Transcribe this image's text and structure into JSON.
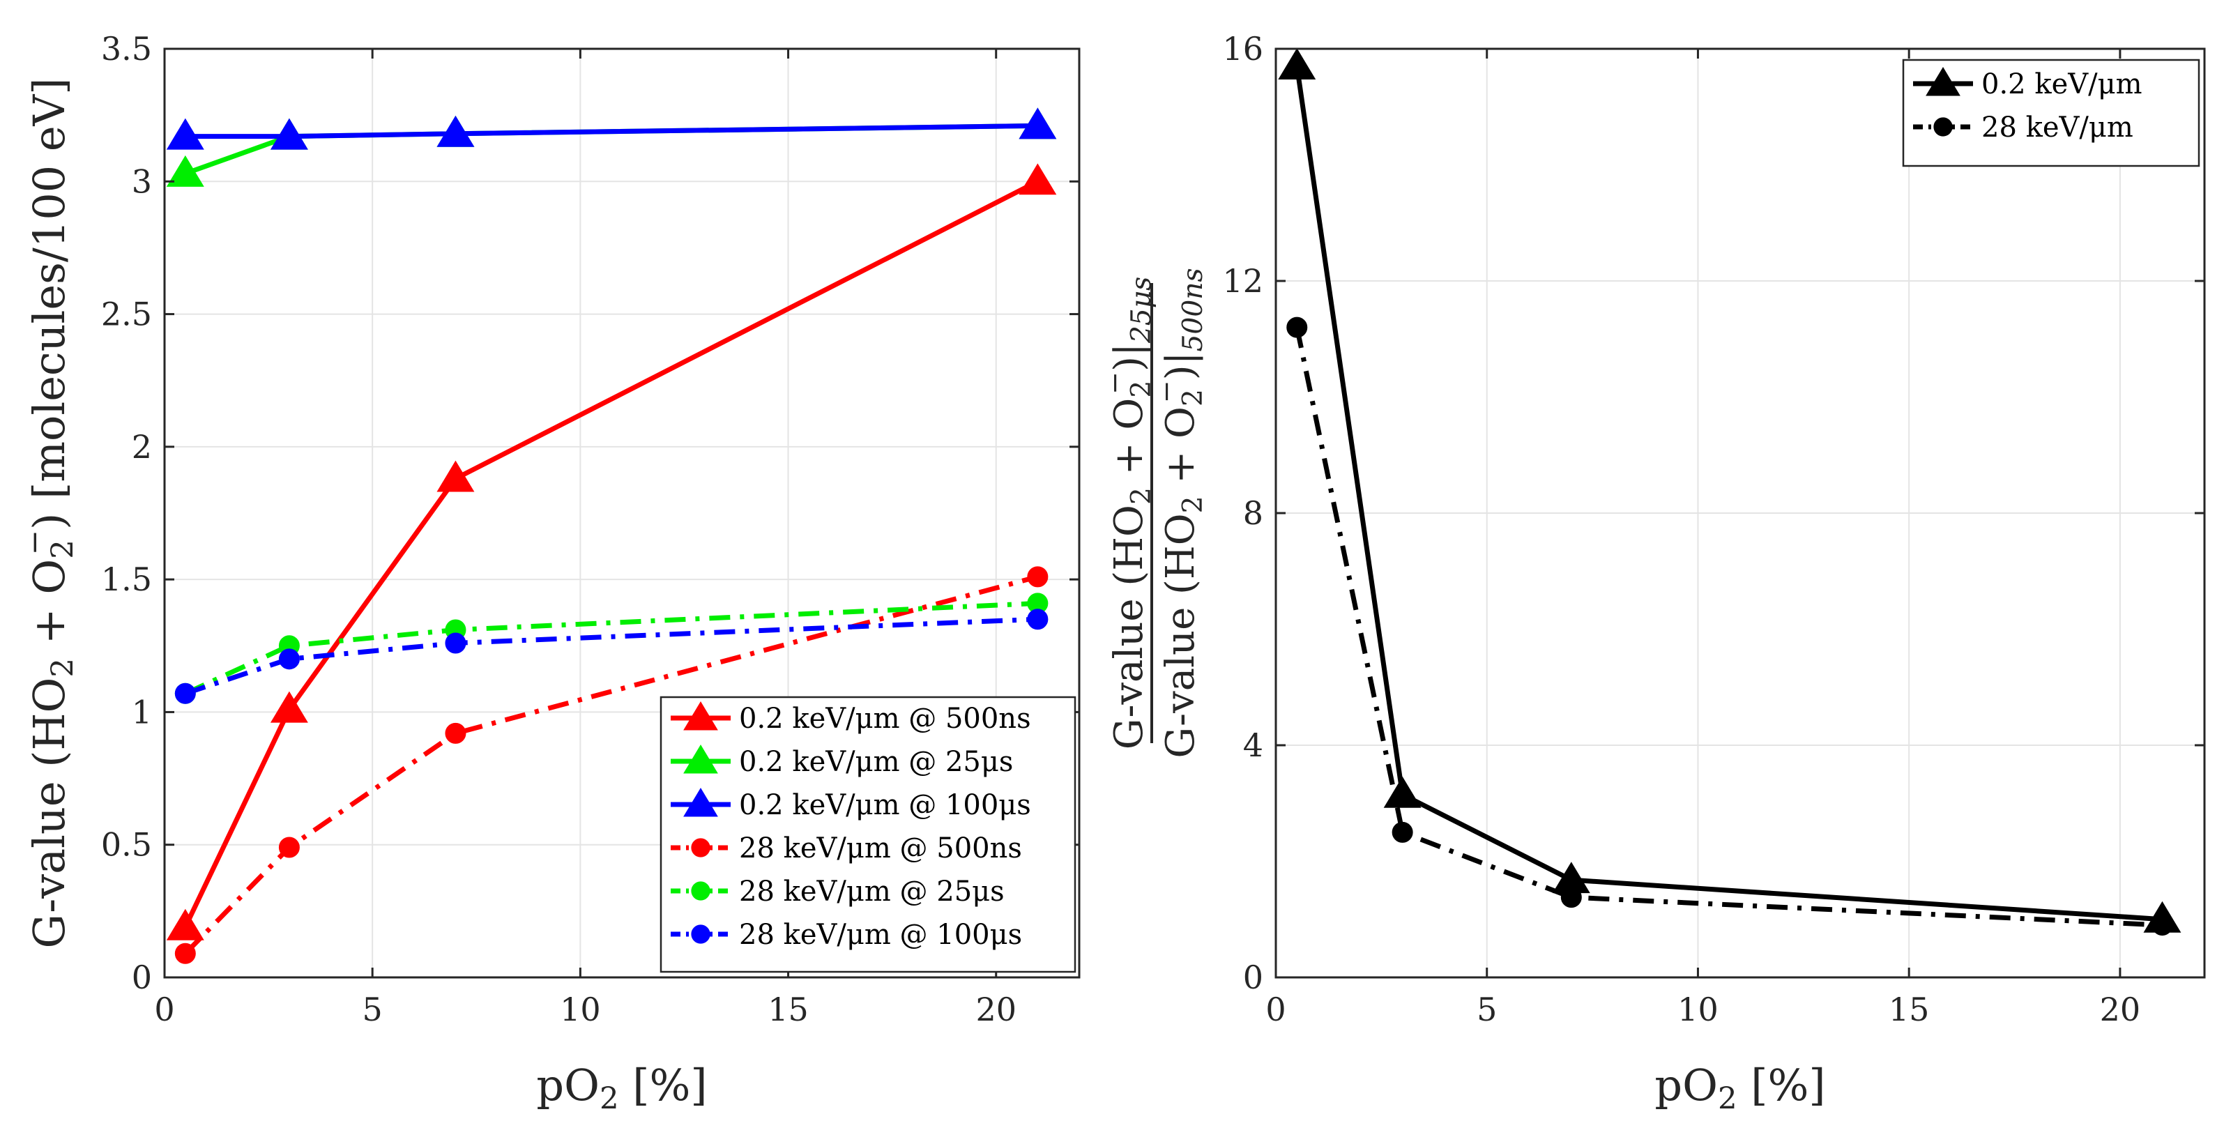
{
  "chart_data": [
    {
      "type": "line",
      "xlabel_main": "pO",
      "xlabel_sub": "2",
      "xlabel_rest": " [%]",
      "ylabel_parts": {
        "a": "G-value (HO",
        "b": "2",
        "c": " + O",
        "d": "2",
        "e": "−",
        "f": ") [molecules/100 eV]"
      },
      "xlim": [
        0,
        22
      ],
      "ylim": [
        0,
        3.5
      ],
      "xticks": [
        0,
        5,
        10,
        15,
        20
      ],
      "yticks": [
        0,
        0.5,
        1,
        1.5,
        2,
        2.5,
        3,
        3.5
      ],
      "xtick_labels": [
        "0",
        "5",
        "10",
        "15",
        "20"
      ],
      "ytick_labels": [
        "0",
        "0.5",
        "1",
        "1.5",
        "2",
        "2.5",
        "3",
        "3.5"
      ],
      "grid": true,
      "legend_position": "bottom-right",
      "x": [
        0.5,
        3,
        7,
        21
      ],
      "series": [
        {
          "name": "0.2 keV/μm @ 500ns",
          "color": "#ff0000",
          "marker": "triangle",
          "dash": "solid",
          "values": [
            0.19,
            1.01,
            1.88,
            3.0
          ]
        },
        {
          "name": "0.2 keV/μm @ 25μs",
          "color": "#00ee00",
          "marker": "triangle",
          "dash": "solid",
          "values": [
            3.03,
            3.17,
            3.18,
            3.21
          ]
        },
        {
          "name": "0.2 keV/μm @ 100μs",
          "color": "#0000ff",
          "marker": "triangle",
          "dash": "solid",
          "values": [
            3.17,
            3.17,
            3.18,
            3.21
          ]
        },
        {
          "name": "28 keV/μm @ 500ns",
          "color": "#ff0000",
          "marker": "circle",
          "dash": "dashdot",
          "values": [
            0.09,
            0.49,
            0.92,
            1.51
          ]
        },
        {
          "name": "28 keV/μm @ 25μs",
          "color": "#00ee00",
          "marker": "circle",
          "dash": "dashdot",
          "values": [
            1.07,
            1.25,
            1.31,
            1.41
          ]
        },
        {
          "name": "28 keV/μm @ 100μs",
          "color": "#0000ff",
          "marker": "circle",
          "dash": "dashdot",
          "values": [
            1.07,
            1.2,
            1.26,
            1.35
          ]
        }
      ]
    },
    {
      "type": "line",
      "xlabel_main": "pO",
      "xlabel_sub": "2",
      "xlabel_rest": " [%]",
      "ylabel_num": {
        "a": "G-value (HO",
        "b": "2",
        "c": " + O",
        "d": "2",
        "e": "−",
        "f": ")|",
        "g": "25μs"
      },
      "ylabel_den": {
        "a": "G-value (HO",
        "b": "2",
        "c": " + O",
        "d": "2",
        "e": "−",
        "f": ")|",
        "g": "500ns"
      },
      "xlim": [
        0,
        22
      ],
      "ylim": [
        0,
        16
      ],
      "xticks": [
        0,
        5,
        10,
        15,
        20
      ],
      "yticks": [
        0,
        4,
        8,
        12,
        16
      ],
      "xtick_labels": [
        "0",
        "5",
        "10",
        "15",
        "20"
      ],
      "ytick_labels": [
        "0",
        "4",
        "8",
        "12",
        "16"
      ],
      "grid": true,
      "legend_position": "top-right",
      "x": [
        0.5,
        3,
        7,
        21
      ],
      "series": [
        {
          "name": "0.2 keV/μm",
          "color": "#000000",
          "marker": "triangle",
          "dash": "solid",
          "values": [
            15.7,
            3.15,
            1.68,
            1.0
          ]
        },
        {
          "name": "28 keV/μm",
          "color": "#000000",
          "marker": "circle",
          "dash": "dashdot",
          "values": [
            11.2,
            2.5,
            1.38,
            0.9
          ]
        }
      ]
    }
  ]
}
